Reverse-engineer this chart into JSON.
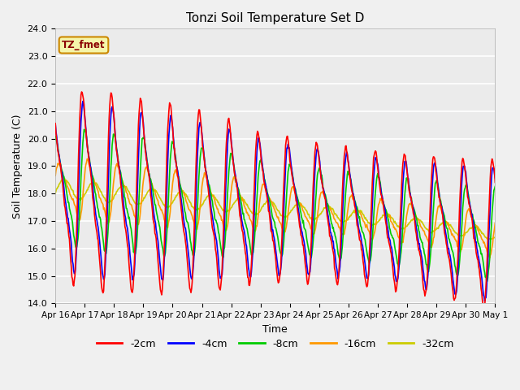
{
  "title": "Tonzi Soil Temperature Set D",
  "xlabel": "Time",
  "ylabel": "Soil Temperature (C)",
  "ylim": [
    14.0,
    24.0
  ],
  "yticks": [
    14.0,
    15.0,
    16.0,
    17.0,
    18.0,
    19.0,
    20.0,
    21.0,
    22.0,
    23.0,
    24.0
  ],
  "plot_bg_color": "#ebebeb",
  "legend_label": "TZ_fmet",
  "legend_box_color": "#f5f5aa",
  "legend_box_edge": "#cc8800",
  "series_colors": {
    "-2cm": "#ff0000",
    "-4cm": "#0000ff",
    "-8cm": "#00cc00",
    "-16cm": "#ff9900",
    "-32cm": "#cccc00"
  },
  "series_linewidth": 1.2,
  "xtick_labels": [
    "Apr 16",
    "Apr 17",
    "Apr 18",
    "Apr 19",
    "Apr 20",
    "Apr 21",
    "Apr 22",
    "Apr 23",
    "Apr 24",
    "Apr 25",
    "Apr 26",
    "Apr 27",
    "Apr 28",
    "Apr 29",
    "Apr 30",
    "May 1"
  ]
}
